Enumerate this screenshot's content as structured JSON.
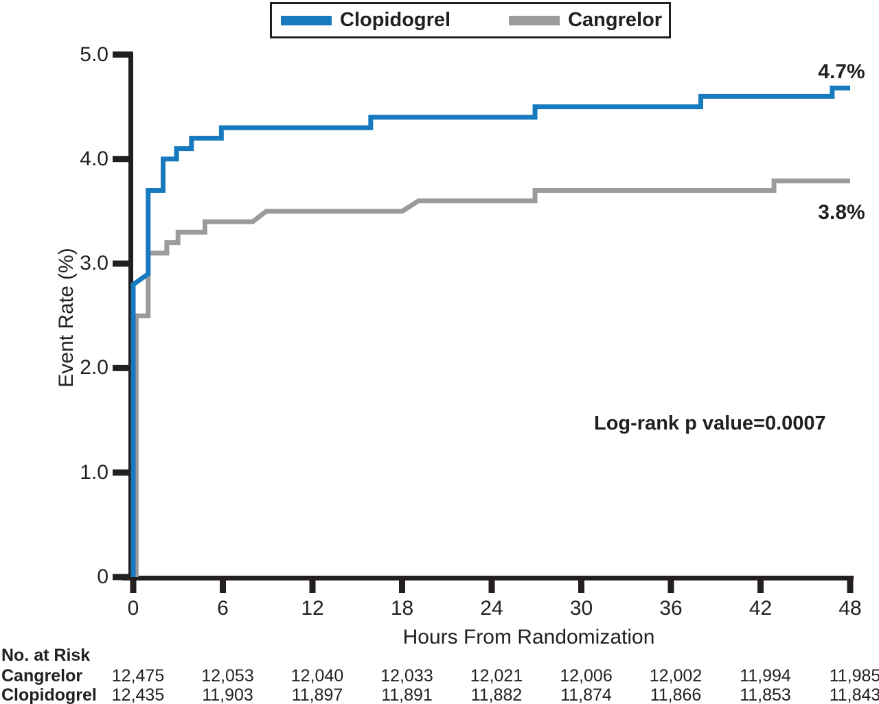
{
  "legend": {
    "items": [
      {
        "label": "Clopidogrel",
        "color": "#1779be"
      },
      {
        "label": "Cangrelor",
        "color": "#9b9b9d"
      }
    ]
  },
  "annotations": {
    "logrank": "Log-rank p value=0.0007"
  },
  "risk_table": {
    "title": "No. at Risk",
    "rows": [
      {
        "label": "Cangrelor",
        "values": [
          "12,475",
          "12,053",
          "12,040",
          "12,033",
          "12,021",
          "12,006",
          "12,002",
          "11,994",
          "11,985"
        ]
      },
      {
        "label": "Clopidogrel",
        "values": [
          "12,435",
          "11,903",
          "11,897",
          "11,891",
          "11,882",
          "11,874",
          "11,866",
          "11,853",
          "11,843"
        ]
      }
    ]
  },
  "chart_data": {
    "type": "line",
    "subtype": "kaplan-meier-step",
    "title": "",
    "xlabel": "Hours From Randomization",
    "ylabel": "Event Rate (%)",
    "xlim": [
      0,
      48
    ],
    "ylim": [
      0,
      5.0
    ],
    "grid": false,
    "legend_position": "top-center",
    "x_ticks": [
      {
        "label": "0",
        "t": 0
      },
      {
        "label": "6",
        "t": 6
      },
      {
        "label": "12",
        "t": 12
      },
      {
        "label": "18",
        "t": 18
      },
      {
        "label": "24",
        "t": 24
      },
      {
        "label": "30",
        "t": 30
      },
      {
        "label": "36",
        "t": 36
      },
      {
        "label": "42",
        "t": 42
      },
      {
        "label": "48",
        "t": 48
      }
    ],
    "y_ticks": [
      {
        "label": "5.0",
        "v": 5.0
      },
      {
        "label": "4.0",
        "v": 4.0
      },
      {
        "label": "3.0",
        "v": 3.0
      },
      {
        "label": "2.0",
        "v": 2.0
      },
      {
        "label": "1.0",
        "v": 1.0
      },
      {
        "label": "0",
        "v": 0
      }
    ],
    "series": [
      {
        "name": "Cangrelor",
        "color": "#9b9b9d",
        "end_label": "3.8%",
        "final_value": 3.8,
        "points": [
          [
            0.2,
            0
          ],
          [
            0.2,
            2.5
          ],
          [
            1.0,
            2.5
          ],
          [
            1.0,
            3.1
          ],
          [
            2.25,
            3.1
          ],
          [
            2.25,
            3.2
          ],
          [
            3.0,
            3.2
          ],
          [
            3.0,
            3.3
          ],
          [
            4.8,
            3.3
          ],
          [
            4.8,
            3.4
          ],
          [
            8.0,
            3.4
          ],
          [
            8.9,
            3.5
          ],
          [
            18.0,
            3.5
          ],
          [
            19.1,
            3.6
          ],
          [
            26.9,
            3.6
          ],
          [
            26.9,
            3.7
          ],
          [
            42.9,
            3.7
          ],
          [
            42.9,
            3.79
          ],
          [
            48,
            3.79
          ]
        ]
      },
      {
        "name": "Clopidogrel",
        "color": "#1779be",
        "end_label": "4.7%",
        "final_value": 4.7,
        "points": [
          [
            0,
            0
          ],
          [
            0,
            2.8
          ],
          [
            1.0,
            2.9
          ],
          [
            1.0,
            3.7
          ],
          [
            2.0,
            3.7
          ],
          [
            2.0,
            4.0
          ],
          [
            2.9,
            4.0
          ],
          [
            2.9,
            4.1
          ],
          [
            3.9,
            4.1
          ],
          [
            3.9,
            4.2
          ],
          [
            5.9,
            4.2
          ],
          [
            5.9,
            4.3
          ],
          [
            15.9,
            4.3
          ],
          [
            15.9,
            4.4
          ],
          [
            26.9,
            4.4
          ],
          [
            26.9,
            4.5
          ],
          [
            38.0,
            4.5
          ],
          [
            38.0,
            4.6
          ],
          [
            46.8,
            4.6
          ],
          [
            46.8,
            4.68
          ],
          [
            48,
            4.68
          ]
        ]
      }
    ]
  }
}
